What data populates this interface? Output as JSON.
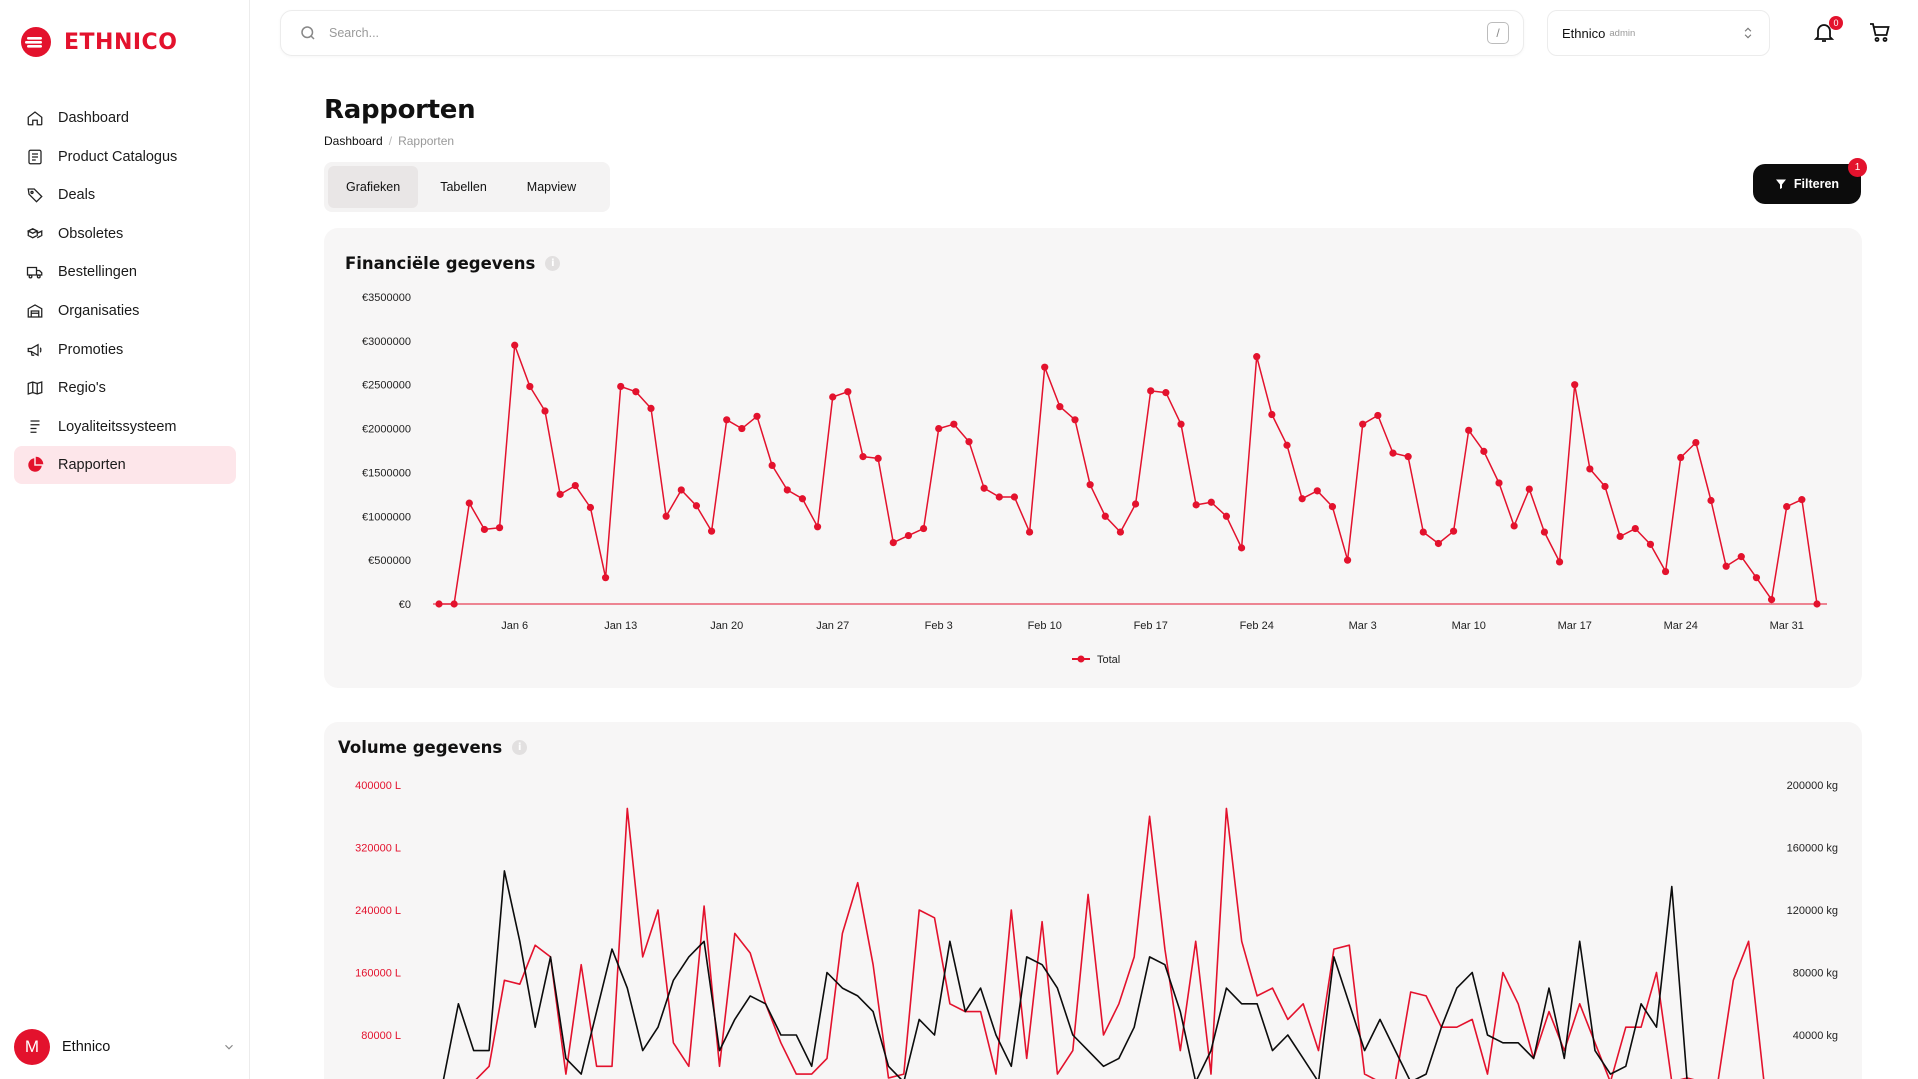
{
  "app": {
    "brand": "ETHNICO"
  },
  "sidebar": {
    "items": [
      {
        "label": "Dashboard",
        "icon": "home-icon"
      },
      {
        "label": "Product Catalogus",
        "icon": "catalog-icon"
      },
      {
        "label": "Deals",
        "icon": "tag-icon"
      },
      {
        "label": "Obsoletes",
        "icon": "boxes-icon"
      },
      {
        "label": "Bestellingen",
        "icon": "truck-icon"
      },
      {
        "label": "Organisaties",
        "icon": "warehouse-icon"
      },
      {
        "label": "Promoties",
        "icon": "megaphone-icon"
      },
      {
        "label": "Regio's",
        "icon": "map-icon"
      },
      {
        "label": "Loyaliteitssysteem",
        "icon": "list-icon"
      },
      {
        "label": "Rapporten",
        "icon": "pie-chart-icon",
        "active": true
      }
    ],
    "user": {
      "initial": "M",
      "name": "Ethnico"
    }
  },
  "topbar": {
    "search_placeholder": "Search...",
    "search_shortcut": "/",
    "org_name": "Ethnico",
    "org_role": "admin",
    "notification_count": "0"
  },
  "page": {
    "title": "Rapporten",
    "breadcrumb": {
      "root": "Dashboard",
      "sep": "/",
      "current": "Rapporten"
    },
    "tabs": [
      "Grafieken",
      "Tabellen",
      "Mapview"
    ],
    "active_tab": "Grafieken",
    "filter_label": "Filteren",
    "filter_count": "1"
  },
  "colors": {
    "accent": "#e3122d",
    "dark": "#0c0c0c"
  },
  "chart_data": [
    {
      "type": "line",
      "title": "Financiële gegevens",
      "ylim": [
        0,
        3500000
      ],
      "y_ticks": [
        "€0",
        "€500000",
        "€1000000",
        "€1500000",
        "€2000000",
        "€2500000",
        "€3000000",
        "€3500000"
      ],
      "x_tick_labels": [
        "Jan 6",
        "Jan 13",
        "Jan 20",
        "Jan 27",
        "Feb 3",
        "Feb 10",
        "Feb 17",
        "Feb 24",
        "Mar 3",
        "Mar 10",
        "Mar 17",
        "Mar 24",
        "Mar 31"
      ],
      "x_start": "Jan 1",
      "series": [
        {
          "name": "Total",
          "color": "#e3122d",
          "values": [
            0,
            0,
            1150000,
            850000,
            870000,
            2950000,
            2480000,
            2200000,
            1250000,
            1350000,
            1100000,
            300000,
            2480000,
            2420000,
            2230000,
            1000000,
            1300000,
            1120000,
            830000,
            2100000,
            2000000,
            2140000,
            1580000,
            1300000,
            1200000,
            880000,
            2360000,
            2420000,
            1680000,
            1660000,
            700000,
            780000,
            860000,
            2000000,
            2050000,
            1850000,
            1320000,
            1220000,
            1220000,
            820000,
            2700000,
            2250000,
            2100000,
            1360000,
            1000000,
            820000,
            1140000,
            2430000,
            2410000,
            2050000,
            1130000,
            1160000,
            1000000,
            640000,
            2820000,
            2160000,
            1810000,
            1200000,
            1290000,
            1110000,
            500000,
            2050000,
            2150000,
            1720000,
            1680000,
            820000,
            690000,
            830000,
            1980000,
            1740000,
            1380000,
            890000,
            1310000,
            820000,
            480000,
            2500000,
            1540000,
            1340000,
            770000,
            860000,
            680000,
            370000,
            1670000,
            1840000,
            1180000,
            430000,
            540000,
            300000,
            50000,
            1110000,
            1190000,
            0
          ]
        }
      ],
      "legend": "bottom-center"
    },
    {
      "type": "line",
      "title": "Volume gegevens",
      "ylim": [
        0,
        400000
      ],
      "y_ticks_left": [
        "80000 L",
        "160000 L",
        "240000 L",
        "320000 L",
        "400000 L"
      ],
      "y2lim": [
        0,
        200000
      ],
      "y_ticks_right": [
        "40000 kg",
        "80000 kg",
        "120000 kg",
        "160000 kg",
        "200000 kg"
      ],
      "series": [
        {
          "name": "",
          "axis": "left",
          "color": "#e3122d",
          "values": [
            0,
            0,
            20000,
            40000,
            150000,
            145000,
            195000,
            180000,
            30000,
            170000,
            40000,
            40000,
            370000,
            180000,
            240000,
            70000,
            40000,
            245000,
            40000,
            210000,
            185000,
            120000,
            70000,
            30000,
            30000,
            50000,
            210000,
            275000,
            170000,
            25000,
            30000,
            240000,
            230000,
            120000,
            110000,
            110000,
            30000,
            240000,
            50000,
            225000,
            30000,
            60000,
            260000,
            80000,
            120000,
            180000,
            360000,
            190000,
            60000,
            200000,
            30000,
            370000,
            200000,
            130000,
            140000,
            100000,
            120000,
            60000,
            190000,
            195000,
            30000,
            10000,
            20000,
            135000,
            130000,
            90000,
            90000,
            100000,
            30000,
            160000,
            120000,
            50000,
            110000,
            60000,
            120000,
            70000,
            10000,
            90000,
            90000,
            160000,
            20000,
            25000,
            20000,
            10000,
            150000,
            200000,
            0
          ]
        },
        {
          "name": "",
          "axis": "right",
          "color": "#0c0c0c",
          "values": [
            0,
            60000,
            30000,
            30000,
            145000,
            100000,
            45000,
            90000,
            25000,
            15000,
            55000,
            95000,
            70000,
            30000,
            45000,
            75000,
            90000,
            100000,
            30000,
            50000,
            65000,
            60000,
            40000,
            40000,
            20000,
            80000,
            70000,
            65000,
            55000,
            20000,
            5000,
            50000,
            40000,
            100000,
            55000,
            70000,
            40000,
            20000,
            90000,
            85000,
            70000,
            40000,
            30000,
            20000,
            25000,
            45000,
            90000,
            85000,
            55000,
            10000,
            30000,
            70000,
            60000,
            60000,
            30000,
            40000,
            25000,
            5000,
            90000,
            60000,
            30000,
            50000,
            30000,
            10000,
            15000,
            45000,
            70000,
            80000,
            40000,
            35000,
            35000,
            25000,
            70000,
            25000,
            100000,
            30000,
            15000,
            20000,
            60000,
            45000,
            135000,
            0,
            0,
            0,
            0,
            0,
            0
          ]
        }
      ]
    }
  ]
}
